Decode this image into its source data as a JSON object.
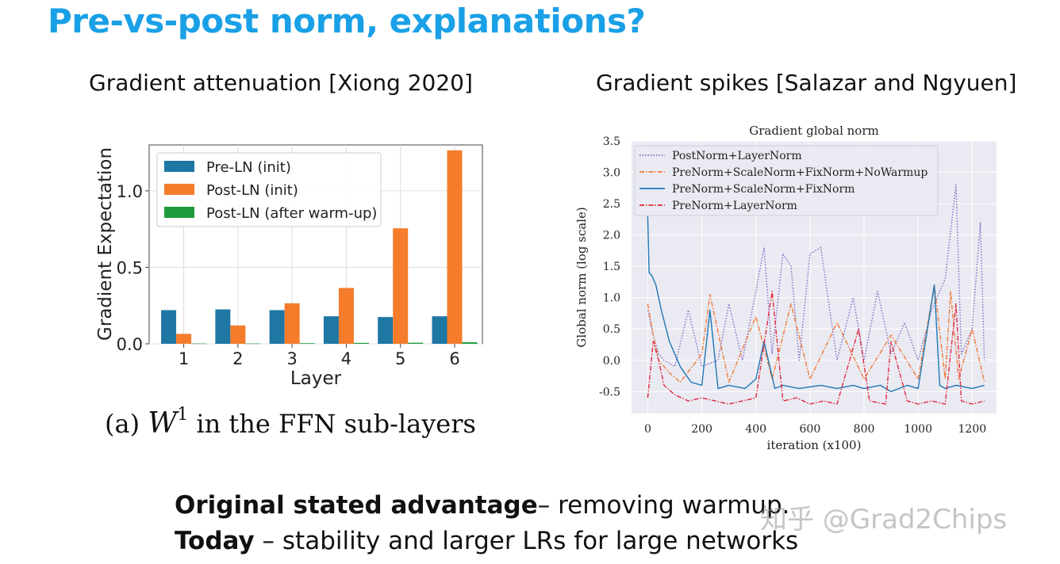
{
  "slide": {
    "title": "Pre-vs-post norm, explanations?",
    "left_subtitle": "Gradient attenuation [Xiong 2020]",
    "right_subtitle": "Gradient spikes [Salazar and Ngyuen]",
    "caption_prefix": "(a) ",
    "caption_math_base": "W",
    "caption_math_sup": "1",
    "caption_suffix": " in the FFN sub-layers",
    "bottom_line1_bold": "Original stated advantage",
    "bottom_line1_rest": "– removing warmup.",
    "bottom_line2_bold": "Today",
    "bottom_line2_rest": " – stability and larger LRs for large networks",
    "watermark": "知乎 @Grad2Chips"
  },
  "chart_data": [
    {
      "type": "bar",
      "title": "",
      "xlabel": "Layer",
      "ylabel": "Gradient Expectation",
      "categories": [
        "1",
        "2",
        "3",
        "4",
        "5",
        "6"
      ],
      "ylim": [
        0,
        1.3
      ],
      "yticks": [
        "0.0",
        "0.5",
        "1.0"
      ],
      "legend_position": "top-left",
      "series": [
        {
          "name": "Pre-LN (init)",
          "color": "#1f77a4",
          "values": [
            0.22,
            0.225,
            0.22,
            0.18,
            0.175,
            0.18
          ]
        },
        {
          "name": "Post-LN (init)",
          "color": "#f47c2b",
          "values": [
            0.065,
            0.12,
            0.265,
            0.365,
            0.755,
            1.265
          ]
        },
        {
          "name": "Post-LN (after warm-up)",
          "color": "#1e9a3c",
          "values": [
            0.002,
            0.002,
            0.004,
            0.006,
            0.007,
            0.01
          ]
        }
      ]
    },
    {
      "type": "line",
      "title": "Gradient global norm",
      "xlabel": "iteration (x100)",
      "ylabel": "Global norm (log scale)",
      "xlim": [
        -60,
        1290
      ],
      "ylim": [
        -0.85,
        3.5
      ],
      "xticks": [
        "0",
        "200",
        "400",
        "600",
        "800",
        "1000",
        "1200"
      ],
      "yticks": [
        "-0.5",
        "0.0",
        "0.5",
        "1.0",
        "1.5",
        "2.0",
        "2.5",
        "3.0",
        "3.5"
      ],
      "legend_position": "top-left",
      "series": [
        {
          "name": "PostNorm+LayerNorm",
          "color": "#7b6bc4",
          "style": "dotted",
          "x": [
            0,
            20,
            40,
            60,
            100,
            150,
            200,
            260,
            300,
            350,
            400,
            430,
            460,
            500,
            530,
            560,
            600,
            640,
            700,
            760,
            800,
            850,
            900,
            950,
            1000,
            1050,
            1100,
            1140,
            1160,
            1200,
            1230,
            1245
          ],
          "y": [
            0.8,
            0.4,
            0.1,
            0.0,
            -0.1,
            0.8,
            -0.1,
            0.0,
            0.9,
            0.0,
            1.1,
            1.8,
            0.1,
            1.7,
            1.5,
            0.0,
            1.7,
            1.8,
            0.0,
            1.0,
            0.0,
            1.1,
            0.1,
            0.6,
            0.0,
            0.8,
            1.3,
            2.8,
            0.1,
            0.5,
            2.2,
            0.0
          ]
        },
        {
          "name": "PreNorm+ScaleNorm+FixNorm+NoWarmup",
          "color": "#f07b3a",
          "style": "dashdot",
          "x": [
            0,
            20,
            40,
            80,
            120,
            200,
            230,
            300,
            400,
            460,
            530,
            600,
            700,
            800,
            900,
            1000,
            1060,
            1100,
            1120,
            1150,
            1200,
            1245
          ],
          "y": [
            0.9,
            0.4,
            0.0,
            -0.2,
            -0.35,
            0.1,
            1.05,
            -0.35,
            0.7,
            -0.3,
            0.9,
            -0.3,
            0.6,
            -0.3,
            0.4,
            -0.3,
            1.2,
            -0.3,
            1.1,
            -0.3,
            0.5,
            -0.35
          ]
        },
        {
          "name": "PreNorm+ScaleNorm+FixNorm",
          "color": "#1f77b4",
          "style": "solid",
          "x": [
            0,
            5,
            15,
            30,
            50,
            80,
            120,
            160,
            200,
            230,
            260,
            300,
            360,
            400,
            430,
            470,
            500,
            560,
            640,
            700,
            760,
            800,
            860,
            900,
            960,
            1000,
            1060,
            1080,
            1100,
            1140,
            1200,
            1245
          ],
          "y": [
            2.3,
            1.4,
            1.35,
            1.2,
            0.8,
            0.3,
            -0.1,
            -0.35,
            -0.4,
            0.8,
            -0.45,
            -0.4,
            -0.45,
            -0.3,
            0.3,
            -0.45,
            -0.4,
            -0.45,
            -0.4,
            -0.45,
            -0.4,
            -0.45,
            -0.4,
            -0.5,
            -0.4,
            -0.45,
            1.2,
            -0.4,
            -0.45,
            -0.4,
            -0.45,
            -0.4
          ]
        },
        {
          "name": "PreNorm+LayerNorm",
          "color": "#e0283d",
          "style": "dashdot",
          "x": [
            0,
            20,
            40,
            60,
            100,
            150,
            200,
            250,
            300,
            350,
            400,
            460,
            500,
            550,
            600,
            650,
            700,
            780,
            820,
            880,
            900,
            960,
            1000,
            1050,
            1100,
            1140,
            1160,
            1200,
            1245
          ],
          "y": [
            -0.6,
            0.3,
            0.0,
            -0.4,
            -0.55,
            -0.65,
            -0.6,
            -0.65,
            -0.7,
            -0.65,
            -0.6,
            1.1,
            -0.65,
            -0.6,
            -0.7,
            -0.65,
            -0.7,
            0.5,
            -0.65,
            -0.7,
            0.3,
            -0.65,
            -0.7,
            -0.65,
            -0.7,
            0.9,
            -0.65,
            -0.7,
            -0.65
          ]
        }
      ]
    }
  ]
}
